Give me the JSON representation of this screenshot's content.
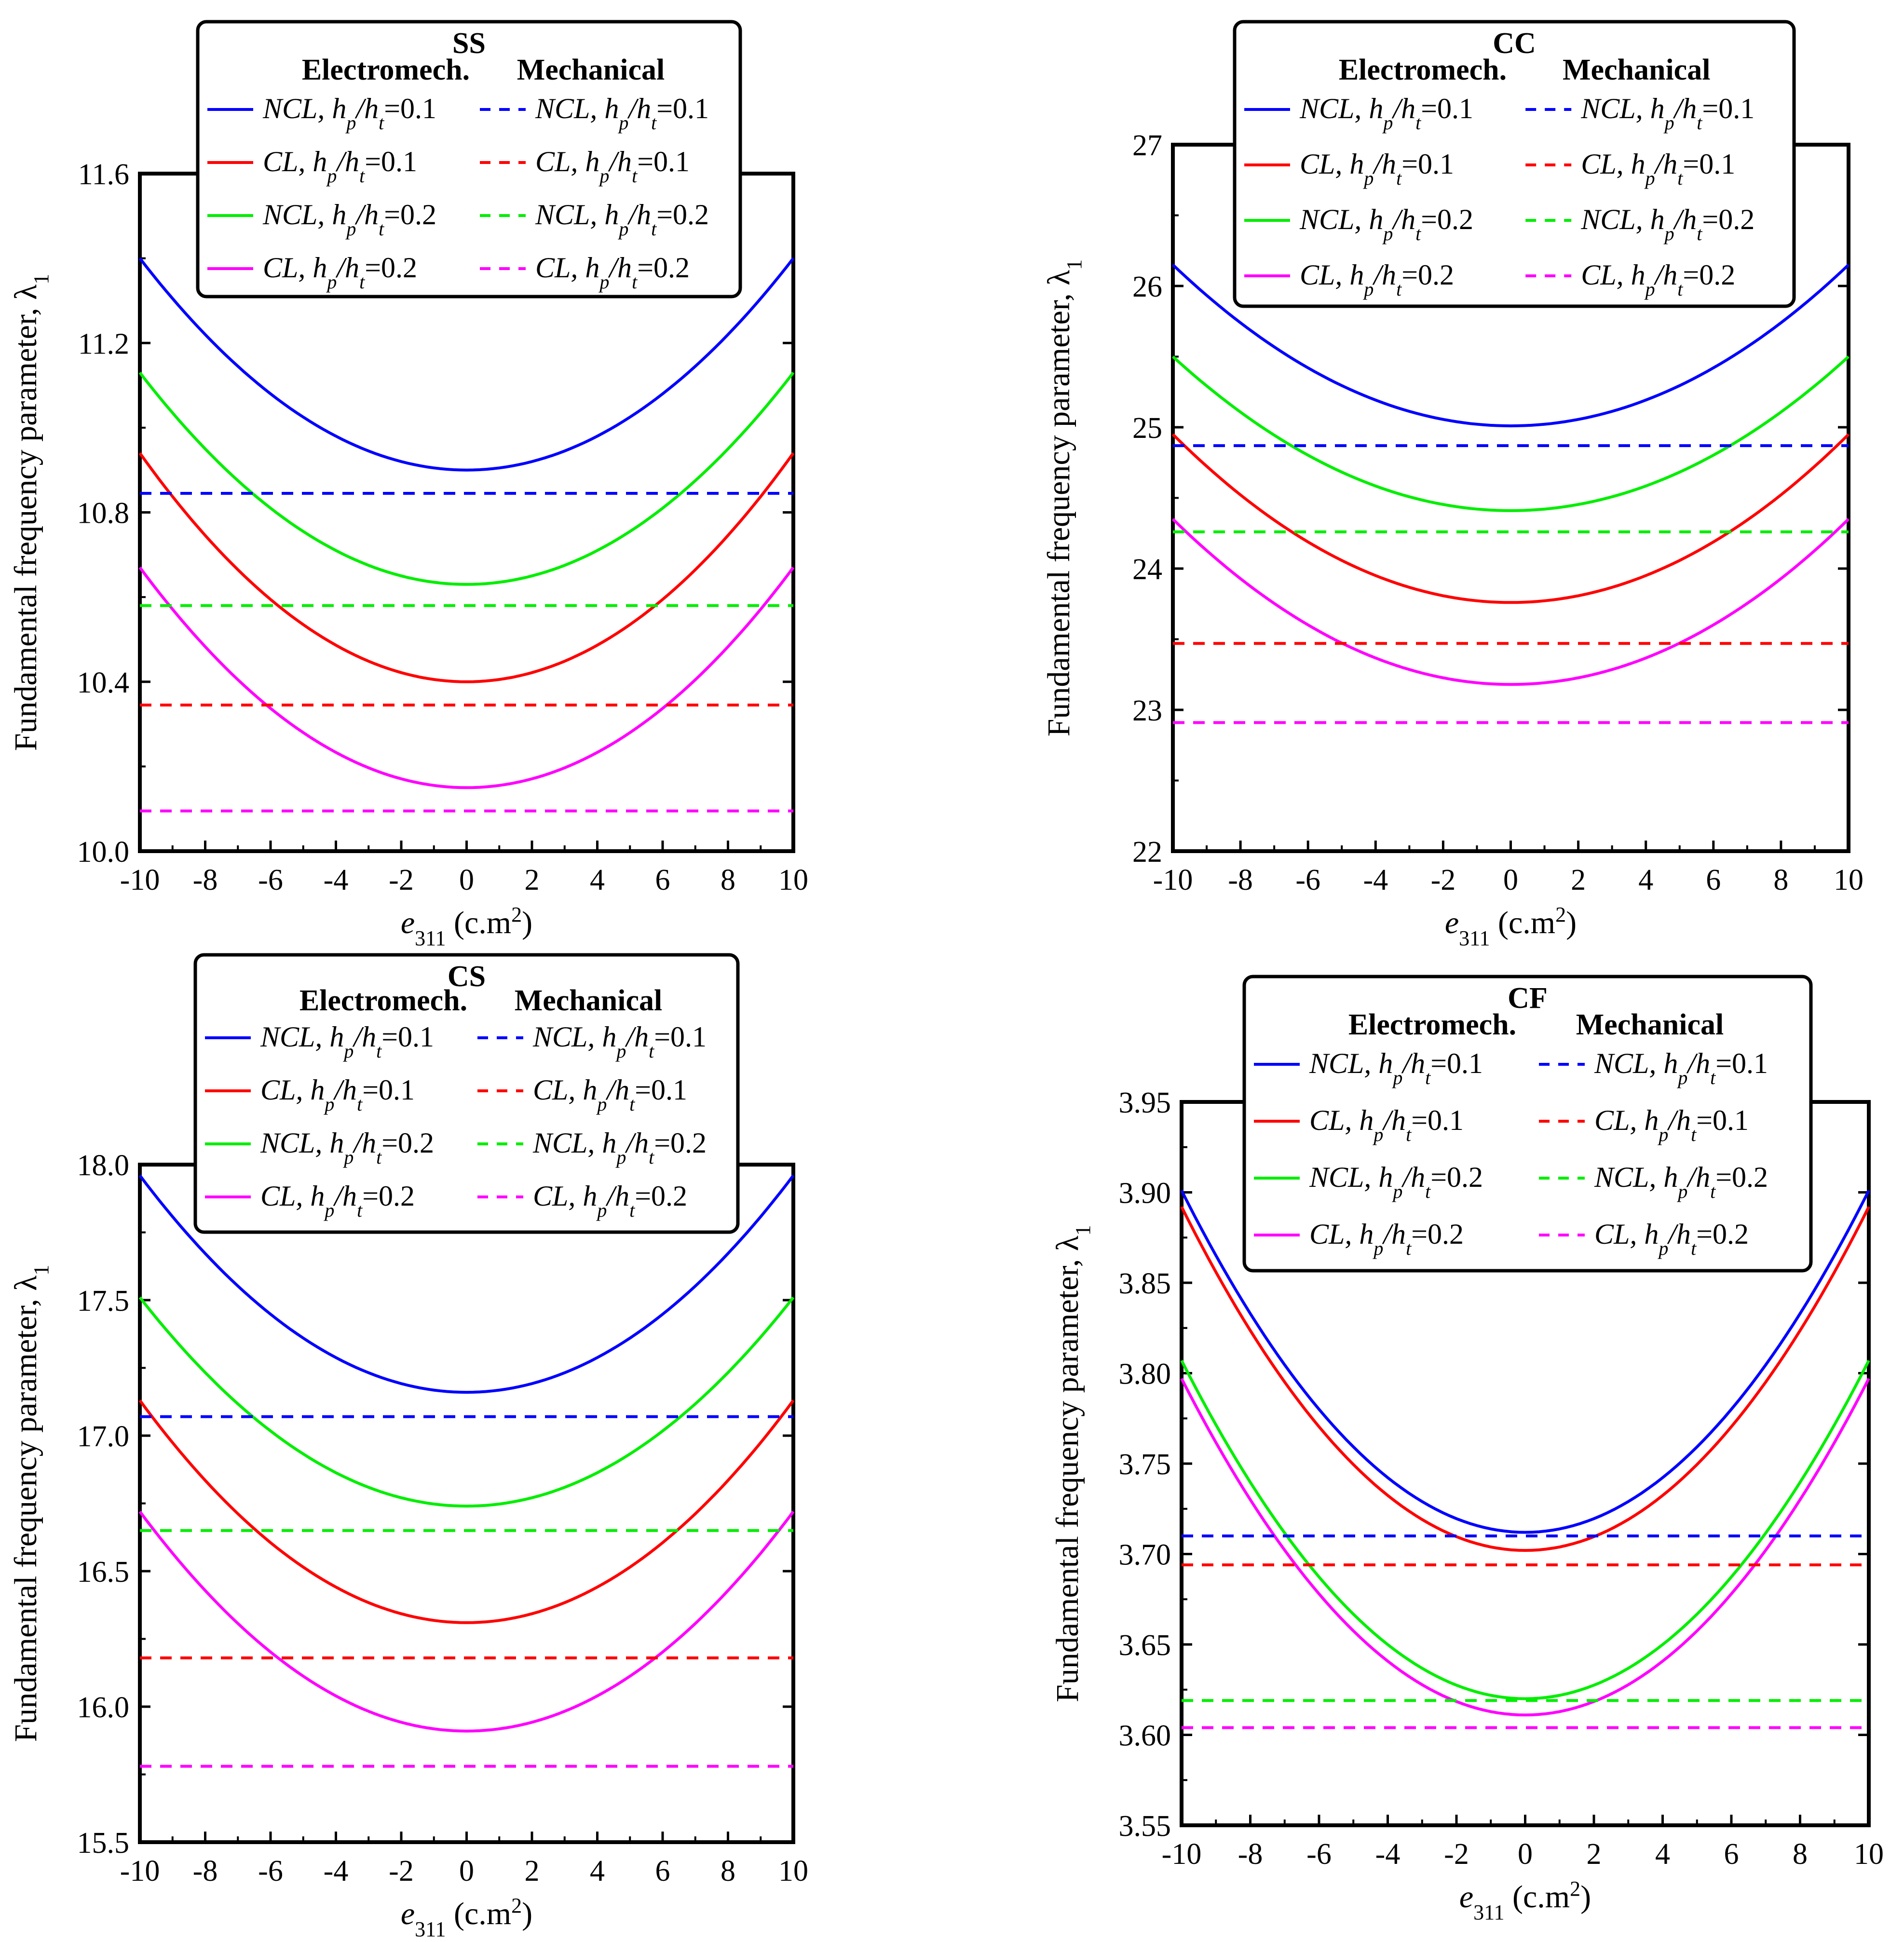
{
  "chart_data": [
    {
      "type": "line",
      "title": "SS",
      "xlabel_var": "e",
      "xlabel_sub": "311",
      "xlabel_unit": " (c.m",
      "xlabel_sup": "2",
      "xlabel_close": ")",
      "ylabel": "Fundamental frequency parameter, λ",
      "ylabel_sub": "1",
      "xlim": [
        -10,
        10
      ],
      "ylim": [
        10.0,
        11.6
      ],
      "xticks": [
        -10,
        -8,
        -6,
        -4,
        -2,
        0,
        2,
        4,
        6,
        8,
        10
      ],
      "xtick_labels": [
        "-10",
        "-8",
        "-6",
        "-4",
        "-2",
        "0",
        "2",
        "4",
        "6",
        "8",
        "10"
      ],
      "yticks": [
        10.0,
        10.4,
        10.8,
        11.2,
        11.6
      ],
      "ytick_labels": [
        "10.0",
        "10.4",
        "10.8",
        "11.2",
        "11.6"
      ],
      "series": [
        {
          "name": "NCL, hp/ht=0.1 (Electromech.)",
          "style": "solid",
          "color": "#0000ff",
          "vertex": 10.9,
          "edge": 11.4
        },
        {
          "name": "CL, hp/ht=0.1 (Electromech.)",
          "style": "solid",
          "color": "#ff0000",
          "vertex": 10.4,
          "edge": 10.94
        },
        {
          "name": "NCL, hp/ht=0.2 (Electromech.)",
          "style": "solid",
          "color": "#00ee00",
          "vertex": 10.63,
          "edge": 11.13
        },
        {
          "name": "CL, hp/ht=0.2 (Electromech.)",
          "style": "solid",
          "color": "#ff00ff",
          "vertex": 10.15,
          "edge": 10.67
        },
        {
          "name": "NCL, hp/ht=0.1 (Mechanical)",
          "style": "dashed",
          "color": "#0000ff",
          "value": 10.845
        },
        {
          "name": "CL, hp/ht=0.1 (Mechanical)",
          "style": "dashed",
          "color": "#ff0000",
          "value": 10.345
        },
        {
          "name": "NCL, hp/ht=0.2 (Mechanical)",
          "style": "dashed",
          "color": "#00ee00",
          "value": 10.58
        },
        {
          "name": "CL, hp/ht=0.2 (Mechanical)",
          "style": "dashed",
          "color": "#ff00ff",
          "value": 10.095
        }
      ],
      "legend": {
        "header_left": "Electromech.",
        "header_right": "Mechanical",
        "items": [
          {
            "label": "NCL, h",
            "sub1": "p",
            "mid": "/h",
            "sub2": "t",
            "tail": "=0.1",
            "color": "#0000ff"
          },
          {
            "label": "CL, h",
            "sub1": "p",
            "mid": "/h",
            "sub2": "t",
            "tail": "=0.1",
            "color": "#ff0000"
          },
          {
            "label": "NCL, h",
            "sub1": "p",
            "mid": "/h",
            "sub2": "t",
            "tail": "=0.2",
            "color": "#00ee00"
          },
          {
            "label": "CL, h",
            "sub1": "p",
            "mid": "/h",
            "sub2": "t",
            "tail": "=0.2",
            "color": "#ff00ff"
          }
        ]
      }
    },
    {
      "type": "line",
      "title": "CC",
      "xlabel_var": "e",
      "xlabel_sub": "311",
      "xlabel_unit": " (c.m",
      "xlabel_sup": "2",
      "xlabel_close": ")",
      "ylabel": "Fundamental frequency parameter, λ",
      "ylabel_sub": "1",
      "xlim": [
        -10,
        10
      ],
      "ylim": [
        22,
        27
      ],
      "xticks": [
        -10,
        -8,
        -6,
        -4,
        -2,
        0,
        2,
        4,
        6,
        8,
        10
      ],
      "xtick_labels": [
        "-10",
        "-8",
        "-6",
        "-4",
        "-2",
        "0",
        "2",
        "4",
        "6",
        "8",
        "10"
      ],
      "yticks": [
        22,
        23,
        24,
        25,
        26,
        27
      ],
      "ytick_labels": [
        "22",
        "23",
        "24",
        "25",
        "26",
        "27"
      ],
      "series": [
        {
          "name": "NCL, hp/ht=0.1 (Electromech.)",
          "style": "solid",
          "color": "#0000ff",
          "vertex": 25.01,
          "edge": 26.15
        },
        {
          "name": "CL, hp/ht=0.1 (Electromech.)",
          "style": "solid",
          "color": "#ff0000",
          "vertex": 23.76,
          "edge": 24.95
        },
        {
          "name": "NCL, hp/ht=0.2 (Electromech.)",
          "style": "solid",
          "color": "#00ee00",
          "vertex": 24.41,
          "edge": 25.5
        },
        {
          "name": "CL, hp/ht=0.2 (Electromech.)",
          "style": "solid",
          "color": "#ff00ff",
          "vertex": 23.18,
          "edge": 24.35
        },
        {
          "name": "NCL, hp/ht=0.1 (Mechanical)",
          "style": "dashed",
          "color": "#0000ff",
          "value": 24.87
        },
        {
          "name": "CL, hp/ht=0.1 (Mechanical)",
          "style": "dashed",
          "color": "#ff0000",
          "value": 23.47
        },
        {
          "name": "NCL, hp/ht=0.2 (Mechanical)",
          "style": "dashed",
          "color": "#00ee00",
          "value": 24.26
        },
        {
          "name": "CL, hp/ht=0.2 (Mechanical)",
          "style": "dashed",
          "color": "#ff00ff",
          "value": 22.91
        }
      ],
      "legend": {
        "header_left": "Electromech.",
        "header_right": "Mechanical",
        "items": [
          {
            "label": "NCL, h",
            "sub1": "p",
            "mid": "/h",
            "sub2": "t",
            "tail": "=0.1",
            "color": "#0000ff"
          },
          {
            "label": "CL, h",
            "sub1": "p",
            "mid": "/h",
            "sub2": "t",
            "tail": "=0.1",
            "color": "#ff0000"
          },
          {
            "label": "NCL, h",
            "sub1": "p",
            "mid": "/h",
            "sub2": "t",
            "tail": "=0.2",
            "color": "#00ee00"
          },
          {
            "label": "CL, h",
            "sub1": "p",
            "mid": "/h",
            "sub2": "t",
            "tail": "=0.2",
            "color": "#ff00ff"
          }
        ]
      }
    },
    {
      "type": "line",
      "title": "CS",
      "xlabel_var": "e",
      "xlabel_sub": "311",
      "xlabel_unit": " (c.m",
      "xlabel_sup": "2",
      "xlabel_close": ")",
      "ylabel": "Fundamental frequency parameter, λ",
      "ylabel_sub": "1",
      "xlim": [
        -10,
        10
      ],
      "ylim": [
        15.5,
        18.0
      ],
      "xticks": [
        -10,
        -8,
        -6,
        -4,
        -2,
        0,
        2,
        4,
        6,
        8,
        10
      ],
      "xtick_labels": [
        "-10",
        "-8",
        "-6",
        "-4",
        "-2",
        "0",
        "2",
        "4",
        "6",
        "8",
        "10"
      ],
      "yticks": [
        15.5,
        16.0,
        16.5,
        17.0,
        17.5,
        18.0
      ],
      "ytick_labels": [
        "15.5",
        "16.0",
        "16.5",
        "17.0",
        "17.5",
        "18.0"
      ],
      "series": [
        {
          "name": "NCL, hp/ht=0.1 (Electromech.)",
          "style": "solid",
          "color": "#0000ff",
          "vertex": 17.16,
          "edge": 17.96
        },
        {
          "name": "CL, hp/ht=0.1 (Electromech.)",
          "style": "solid",
          "color": "#ff0000",
          "vertex": 16.31,
          "edge": 17.13
        },
        {
          "name": "NCL, hp/ht=0.2 (Electromech.)",
          "style": "solid",
          "color": "#00ee00",
          "vertex": 16.74,
          "edge": 17.51
        },
        {
          "name": "CL, hp/ht=0.2 (Electromech.)",
          "style": "solid",
          "color": "#ff00ff",
          "vertex": 15.91,
          "edge": 16.72
        },
        {
          "name": "NCL, hp/ht=0.1 (Mechanical)",
          "style": "dashed",
          "color": "#0000ff",
          "value": 17.07
        },
        {
          "name": "CL, hp/ht=0.1 (Mechanical)",
          "style": "dashed",
          "color": "#ff0000",
          "value": 16.18
        },
        {
          "name": "NCL, hp/ht=0.2 (Mechanical)",
          "style": "dashed",
          "color": "#00ee00",
          "value": 16.65
        },
        {
          "name": "CL, hp/ht=0.2 (Mechanical)",
          "style": "dashed",
          "color": "#ff00ff",
          "value": 15.78
        }
      ],
      "legend": {
        "header_left": "Electromech.",
        "header_right": "Mechanical",
        "items": [
          {
            "label": "NCL, h",
            "sub1": "p",
            "mid": "/h",
            "sub2": "t",
            "tail": "=0.1",
            "color": "#0000ff"
          },
          {
            "label": "CL, h",
            "sub1": "p",
            "mid": "/h",
            "sub2": "t",
            "tail": "=0.1",
            "color": "#ff0000"
          },
          {
            "label": "NCL, h",
            "sub1": "p",
            "mid": "/h",
            "sub2": "t",
            "tail": "=0.2",
            "color": "#00ee00"
          },
          {
            "label": "CL, h",
            "sub1": "p",
            "mid": "/h",
            "sub2": "t",
            "tail": "=0.2",
            "color": "#ff00ff"
          }
        ]
      }
    },
    {
      "type": "line",
      "title": "CF",
      "xlabel_var": "e",
      "xlabel_sub": "311",
      "xlabel_unit": " (c.m",
      "xlabel_sup": "2",
      "xlabel_close": ")",
      "ylabel": "Fundamental frequency parameter, λ",
      "ylabel_sub": "1",
      "xlim": [
        -10,
        10
      ],
      "ylim": [
        3.55,
        3.95
      ],
      "xticks": [
        -10,
        -8,
        -6,
        -4,
        -2,
        0,
        2,
        4,
        6,
        8,
        10
      ],
      "xtick_labels": [
        "-10",
        "-8",
        "-6",
        "-4",
        "-2",
        "0",
        "2",
        "4",
        "6",
        "8",
        "10"
      ],
      "yticks": [
        3.55,
        3.6,
        3.65,
        3.7,
        3.75,
        3.8,
        3.85,
        3.9,
        3.95
      ],
      "ytick_labels": [
        "3.55",
        "3.60",
        "3.65",
        "3.70",
        "3.75",
        "3.80",
        "3.85",
        "3.90",
        "3.95"
      ],
      "series": [
        {
          "name": "NCL, hp/ht=0.1 (Electromech.)",
          "style": "solid",
          "color": "#0000ff",
          "vertex": 3.712,
          "edge": 3.901
        },
        {
          "name": "CL, hp/ht=0.1 (Electromech.)",
          "style": "solid",
          "color": "#ff0000",
          "vertex": 3.702,
          "edge": 3.892
        },
        {
          "name": "NCL, hp/ht=0.2 (Electromech.)",
          "style": "solid",
          "color": "#00ee00",
          "vertex": 3.62,
          "edge": 3.807
        },
        {
          "name": "CL, hp/ht=0.2 (Electromech.)",
          "style": "solid",
          "color": "#ff00ff",
          "vertex": 3.611,
          "edge": 3.797
        },
        {
          "name": "NCL, hp/ht=0.1 (Mechanical)",
          "style": "dashed",
          "color": "#0000ff",
          "value": 3.71
        },
        {
          "name": "CL, hp/ht=0.1 (Mechanical)",
          "style": "dashed",
          "color": "#ff0000",
          "value": 3.694
        },
        {
          "name": "NCL, hp/ht=0.2 (Mechanical)",
          "style": "dashed",
          "color": "#00ee00",
          "value": 3.619
        },
        {
          "name": "CL, hp/ht=0.2 (Mechanical)",
          "style": "dashed",
          "color": "#ff00ff",
          "value": 3.604
        }
      ],
      "legend": {
        "header_left": "Electromech.",
        "header_right": "Mechanical",
        "items": [
          {
            "label": "NCL, h",
            "sub1": "p",
            "mid": "/h",
            "sub2": "t",
            "tail": "=0.1",
            "color": "#0000ff"
          },
          {
            "label": "CL, h",
            "sub1": "p",
            "mid": "/h",
            "sub2": "t",
            "tail": "=0.1",
            "color": "#ff0000"
          },
          {
            "label": "NCL, h",
            "sub1": "p",
            "mid": "/h",
            "sub2": "t",
            "tail": "=0.2",
            "color": "#00ee00"
          },
          {
            "label": "CL, h",
            "sub1": "p",
            "mid": "/h",
            "sub2": "t",
            "tail": "=0.2",
            "color": "#ff00ff"
          }
        ]
      }
    }
  ]
}
